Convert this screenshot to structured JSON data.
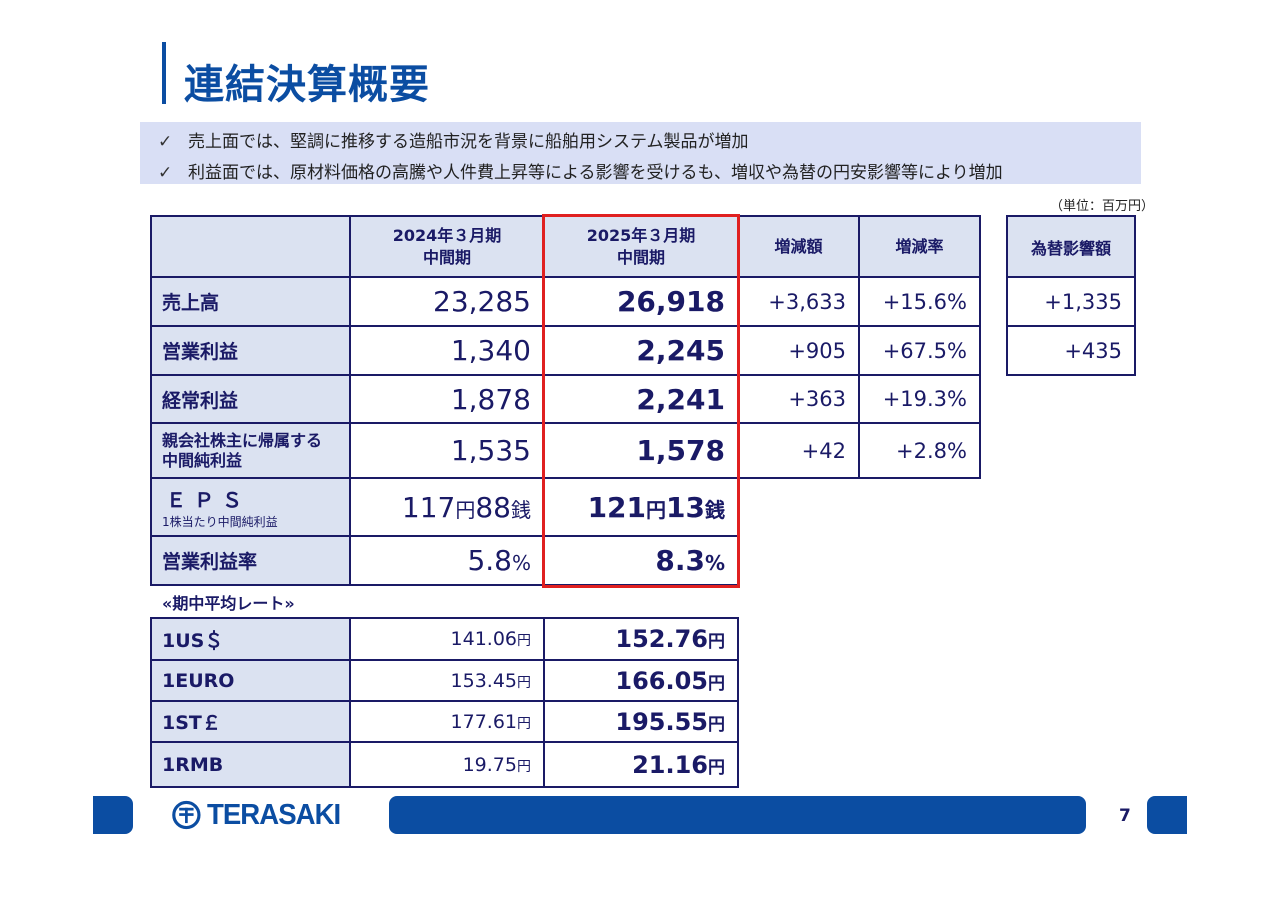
{
  "title": "連結決算概要",
  "bullets": [
    {
      "check": "✓",
      "text": "売上面では、堅調に推移する造船市況を背景に船舶用システム製品が増加"
    },
    {
      "check": "✓",
      "text": "利益面では、原材料価格の高騰や人件費上昇等による影響を受けるも、増収や為替の円安影響等により増加"
    }
  ],
  "unit_note": "（単位：百万円）",
  "table": {
    "headers": {
      "prev_line1": "2024年３月期",
      "prev_line2": "中間期",
      "curr_line1": "2025年３月期",
      "curr_line2": "中間期",
      "change": "増減額",
      "rate": "増減率"
    },
    "rows": [
      {
        "label": "売上高",
        "prev": "23,285",
        "curr": "26,918",
        "change": "+3,633",
        "rate": "+15.6%"
      },
      {
        "label": "営業利益",
        "prev": "1,340",
        "curr": "2,245",
        "change": "+905",
        "rate": "+67.5%"
      },
      {
        "label": "経常利益",
        "prev": "1,878",
        "curr": "2,241",
        "change": "+363",
        "rate": "+19.3%"
      },
      {
        "label_line1": "親会社株主に帰属する",
        "label_line2": "中間純利益",
        "prev": "1,535",
        "curr": "1,578",
        "change": "+42",
        "rate": "+2.8%"
      }
    ],
    "eps": {
      "label": "ＥＰＳ",
      "sublabel": "1株当たり中間純利益",
      "prev_yen": "117",
      "prev_sen": "88",
      "curr_yen": "121",
      "curr_sen": "13",
      "yen_unit": "円",
      "sen_unit": "銭"
    },
    "margin": {
      "label": "営業利益率",
      "prev": "5.8",
      "curr": "8.3",
      "pct": "%"
    }
  },
  "fx_impact": {
    "header": "為替影響額",
    "values": [
      "+1,335",
      "+435"
    ]
  },
  "rates": {
    "caption": "«期中平均レート»",
    "yen_unit": "円",
    "rows": [
      {
        "label": "1US＄",
        "prev": "141.06",
        "curr": "152.76"
      },
      {
        "label": "1EURO",
        "prev": "153.45",
        "curr": "166.05"
      },
      {
        "label": "1ST￡",
        "prev": "177.61",
        "curr": "195.55"
      },
      {
        "label": "1RMB",
        "prev": "19.75",
        "curr": "21.16"
      }
    ]
  },
  "footer": {
    "logo_text": "TERASAKI",
    "page_number": "7"
  }
}
